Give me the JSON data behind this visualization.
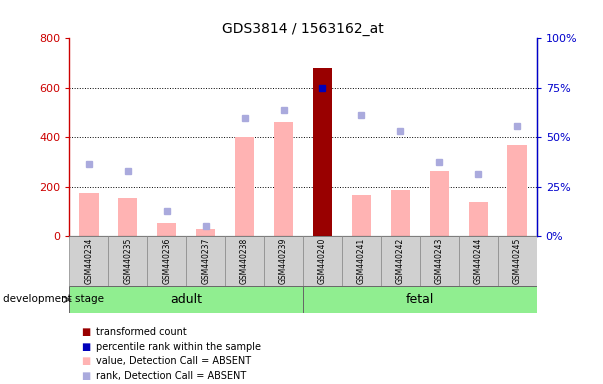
{
  "title": "GDS3814 / 1563162_at",
  "samples": [
    "GSM440234",
    "GSM440235",
    "GSM440236",
    "GSM440237",
    "GSM440238",
    "GSM440239",
    "GSM440240",
    "GSM440241",
    "GSM440242",
    "GSM440243",
    "GSM440244",
    "GSM440245"
  ],
  "bar_values": [
    175,
    155,
    55,
    30,
    400,
    460,
    680,
    165,
    185,
    265,
    140,
    370
  ],
  "bar_colors": [
    "#ffb3b3",
    "#ffb3b3",
    "#ffb3b3",
    "#ffb3b3",
    "#ffb3b3",
    "#ffb3b3",
    "#990000",
    "#ffb3b3",
    "#ffb3b3",
    "#ffb3b3",
    "#ffb3b3",
    "#ffb3b3"
  ],
  "rank_values": [
    290,
    265,
    100,
    40,
    480,
    510,
    600,
    490,
    425,
    300,
    250,
    445
  ],
  "rank_colors": [
    "#aaaadd",
    "#aaaadd",
    "#aaaadd",
    "#aaaadd",
    "#aaaadd",
    "#aaaadd",
    "#0000bb",
    "#aaaadd",
    "#aaaadd",
    "#aaaadd",
    "#aaaadd",
    "#aaaadd"
  ],
  "adult_label": "adult",
  "fetal_label": "fetal",
  "dev_stage_label": "development stage",
  "ylim_left": [
    0,
    800
  ],
  "yticks_left": [
    0,
    200,
    400,
    600,
    800
  ],
  "ytick_labels_left": [
    "0",
    "200",
    "400",
    "600",
    "800"
  ],
  "yticks_right_pos": [
    0,
    200,
    400,
    600,
    800
  ],
  "ytick_labels_right": [
    "0%",
    "25%",
    "50%",
    "75%",
    "100%"
  ],
  "left_axis_color": "#cc0000",
  "right_axis_color": "#0000cc",
  "legend_items": [
    {
      "label": "transformed count",
      "color": "#990000",
      "marker": "s"
    },
    {
      "label": "percentile rank within the sample",
      "color": "#0000bb",
      "marker": "s"
    },
    {
      "label": "value, Detection Call = ABSENT",
      "color": "#ffb3b3",
      "marker": "s"
    },
    {
      "label": "rank, Detection Call = ABSENT",
      "color": "#aaaadd",
      "marker": "s"
    }
  ]
}
